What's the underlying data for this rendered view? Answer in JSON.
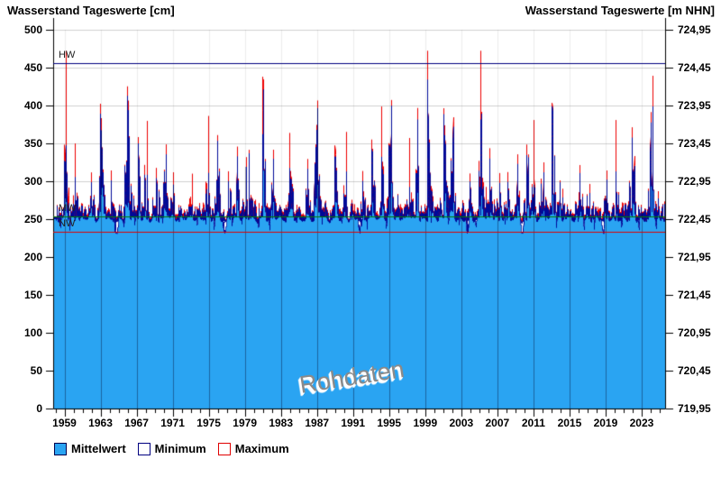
{
  "titles": {
    "left": "Wasserstand Tageswerte [cm]",
    "right": "Wasserstand Tageswerte [m NHN]"
  },
  "watermark": "Rohdaten",
  "legend": [
    {
      "label": "Mittelwert",
      "fill": "#2aa4f2",
      "border": "#00004d"
    },
    {
      "label": "Minimum",
      "fill": "#ffffff",
      "border": "#000080"
    },
    {
      "label": "Maximum",
      "fill": "#ffffff",
      "border": "#e00000"
    }
  ],
  "chart_data": {
    "type": "line",
    "title": "Wasserstand Tageswerte",
    "x": {
      "domain_start": 1957.75,
      "domain_end": 2025.6,
      "tick_step_years": 1,
      "label_first": 1959,
      "label_last": 2023,
      "label_step": 4
    },
    "y_left": {
      "unit": "cm",
      "min": 0,
      "max": 500,
      "tick_step": 50
    },
    "y_right": {
      "unit": "m NHN",
      "min": 719.95,
      "max": 724.95,
      "tick_step": 0.5,
      "gauge_zero_m": 719.95
    },
    "reference_lines": [
      {
        "name": "HW",
        "value_cm": 456,
        "color": "#000080"
      },
      {
        "name": "MW",
        "value_cm": 254,
        "color": "#007d00"
      },
      {
        "name": "NW",
        "value_cm": 233,
        "color": "#e00000"
      }
    ],
    "series": [
      {
        "name": "Mittelwert",
        "style": "area",
        "fill": "#2aa4f2",
        "line": "#000a99"
      },
      {
        "name": "Minimum",
        "style": "line",
        "line": "#000a99",
        "halo": "#ffffff"
      },
      {
        "name": "Maximum",
        "style": "line",
        "line": "#ee0000"
      }
    ],
    "baseline": {
      "mean_level_cm": 250.5,
      "seasonal_amplitude_cm": 3
    },
    "annual_peaks": {
      "start_year": 1958,
      "mean_peak_cm": [
        320,
        335,
        300,
        290,
        380,
        340,
        300,
        400,
        370,
        345,
        310,
        300,
        330,
        290,
        252,
        262,
        310,
        345,
        242,
        300,
        330,
        320,
        360,
        350,
        330,
        310,
        292,
        300,
        345,
        350,
        330,
        282,
        282,
        252,
        300,
        340,
        330,
        395,
        262,
        292,
        350,
        410,
        330,
        340,
        365,
        292,
        310,
        380,
        330,
        300,
        300,
        320,
        330,
        292,
        310,
        390,
        282,
        272,
        300,
        282,
        242,
        300,
        310,
        350,
        300,
        320,
        370,
        320
      ],
      "max_peak_cm": [
        332,
        468,
        340,
        302,
        392,
        356,
        312,
        412,
        382,
        352,
        380,
        312,
        342,
        302,
        262,
        302,
        385,
        352,
        252,
        312,
        342,
        332,
        435,
        362,
        342,
        356,
        302,
        312,
        352,
        362,
        342,
        292,
        332,
        262,
        312,
        352,
        395,
        402,
        272,
        356,
        362,
        455,
        342,
        352,
        377,
        302,
        322,
        470,
        342,
        312,
        312,
        332,
        342,
        376,
        322,
        396,
        292,
        282,
        312,
        292,
        252,
        312,
        376,
        362,
        312,
        332,
        410,
        332
      ]
    },
    "drought_years": [
      1964,
      1976,
      1991,
      2003,
      2009,
      2018
    ],
    "min_extreme_cm": 232,
    "seed": 987654
  },
  "layout_colors": {
    "grid_h": "rgba(0,0,0,0.18)",
    "grid_v_light": "rgba(0,0,0,0.07)",
    "grid_v_dark": "rgba(0,0,30,0.38)",
    "axis": "#000000"
  }
}
